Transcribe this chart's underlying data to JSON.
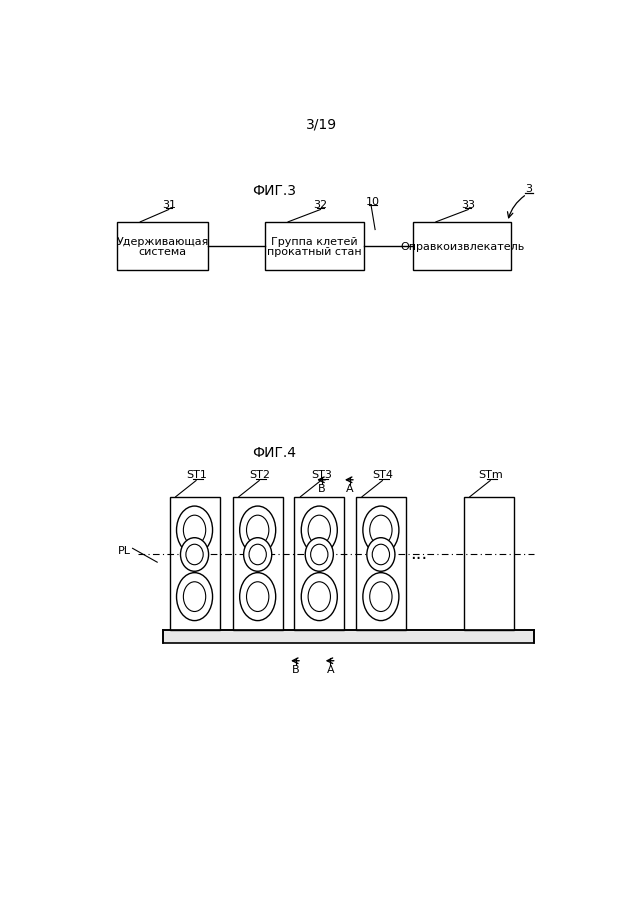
{
  "page_label": "3/19",
  "fig3_title": "ФИГ.3",
  "fig4_title": "ФИГ.4",
  "fig3_ref": "3",
  "box1_label": "31",
  "box2_label": "32",
  "box2_sublabel": "10",
  "box3_label": "33",
  "box1_text_line1": "Удерживающая",
  "box1_text_line2": "система",
  "box2_text_line1": "Группа клетей",
  "box2_text_line2": "прокатный стан",
  "box3_text_line1": "Оправкоизвлекатель",
  "fig4_labels": [
    "ST1",
    "ST2",
    "ST3",
    "ST4",
    "STm"
  ],
  "fig4_PL": "PL",
  "arrow_A": "A",
  "arrow_B": "B",
  "dots": "...",
  "bg_color": "#ffffff",
  "line_color": "#000000",
  "text_color": "#000000",
  "font_size_title": 10,
  "font_size_label": 8,
  "font_size_box": 8,
  "font_size_page": 10
}
